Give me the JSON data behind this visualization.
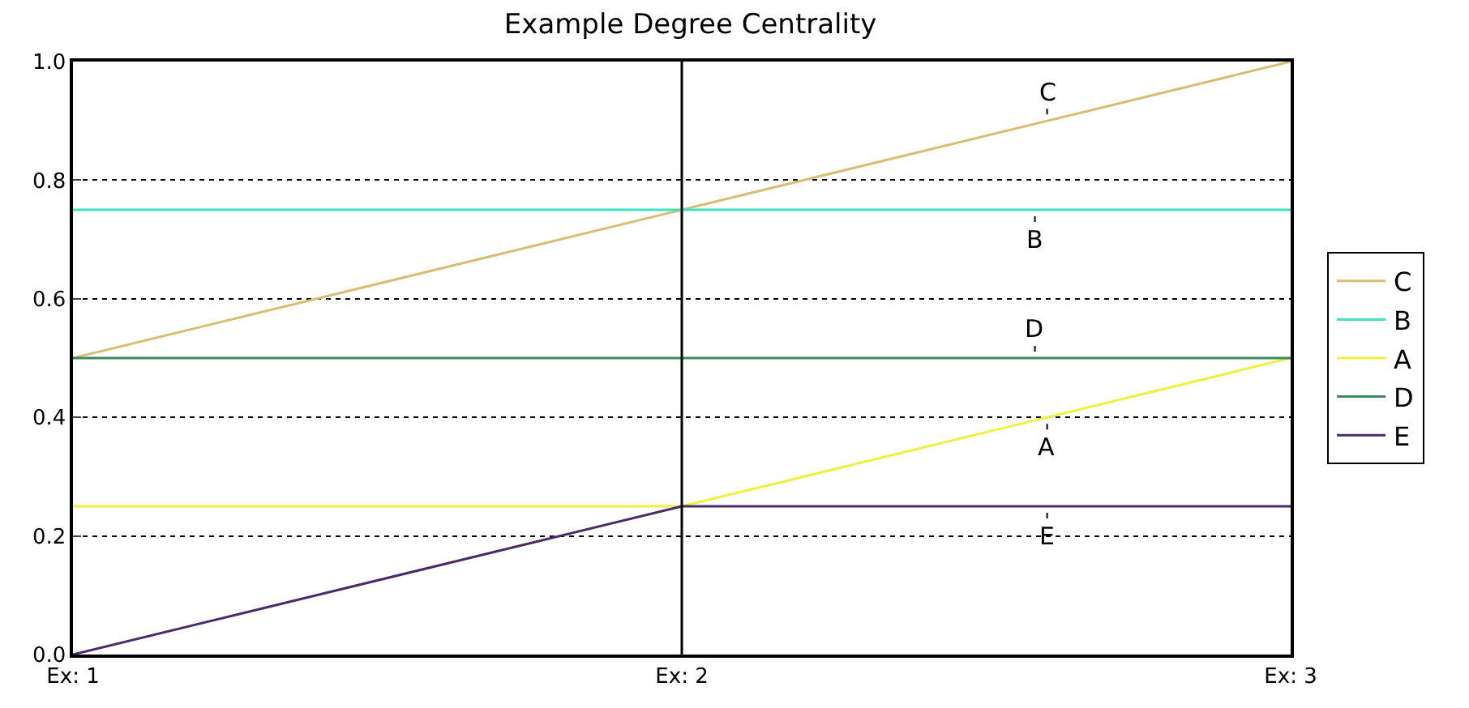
{
  "chart_data": {
    "type": "line",
    "title": "Example Degree Centrality",
    "x": [
      1,
      2,
      3
    ],
    "xlim": [
      1,
      3
    ],
    "xticks": [
      {
        "value": 1,
        "label": "Ex: 1"
      },
      {
        "value": 2,
        "label": "Ex: 2"
      },
      {
        "value": 3,
        "label": "Ex: 3"
      }
    ],
    "ylim": [
      0,
      1
    ],
    "yticks": [
      {
        "value": 0,
        "label": "0.0"
      },
      {
        "value": 0.2,
        "label": "0.2"
      },
      {
        "value": 0.4,
        "label": "0.4"
      },
      {
        "value": 0.6,
        "label": "0.6"
      },
      {
        "value": 0.8,
        "label": "0.8"
      },
      {
        "value": 1,
        "label": "1.0"
      }
    ],
    "grid": "y",
    "legend": "right",
    "marker": "none",
    "line_style": "solid",
    "ref_lines": [
      {
        "axis": "x",
        "value": 2,
        "label": null,
        "color": "#000000"
      }
    ],
    "series": [
      {
        "name": "C",
        "color": "#d8bf6f",
        "values": [
          0.5,
          0.75,
          1.0
        ]
      },
      {
        "name": "B",
        "color": "#40e0c0",
        "values": [
          0.75,
          0.75,
          0.75
        ]
      },
      {
        "name": "A",
        "color": "#f0f040",
        "values": [
          0.25,
          0.25,
          0.5
        ]
      },
      {
        "name": "D",
        "color": "#3a8a60",
        "values": [
          0.5,
          0.5,
          0.5
        ]
      },
      {
        "name": "E",
        "color": "#4a2a6a",
        "values": [
          0.0,
          0.25,
          0.25
        ]
      }
    ]
  }
}
